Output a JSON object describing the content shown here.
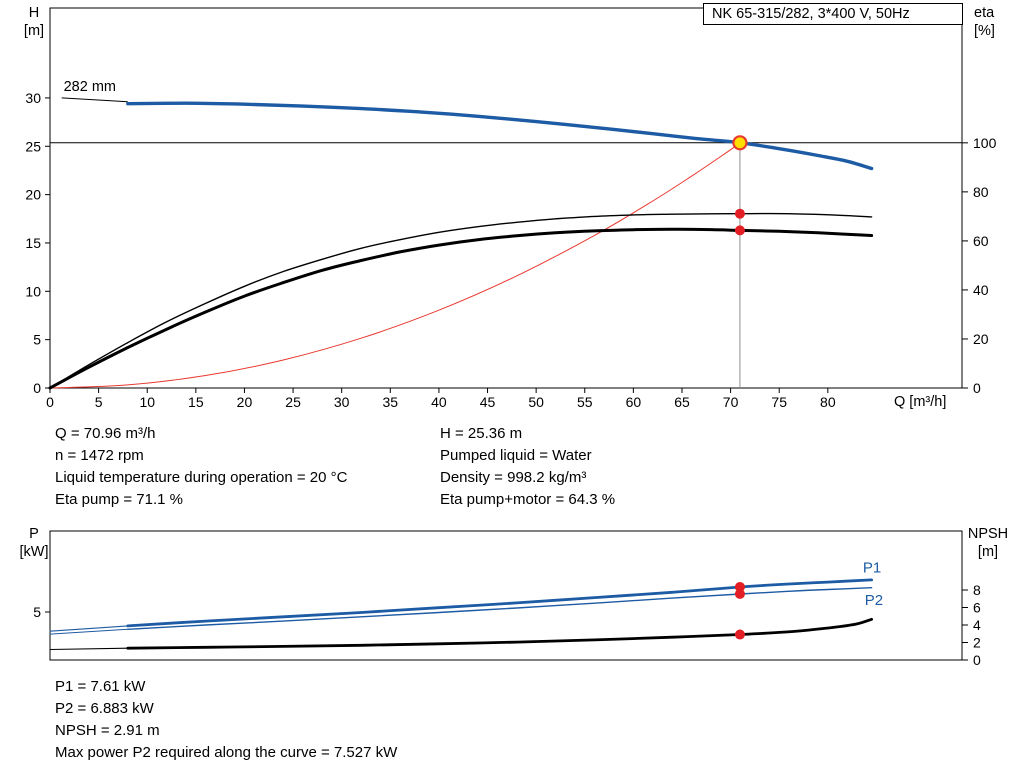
{
  "info_top": {
    "left": [
      "Q = 70.96 m³/h",
      "n = 1472 rpm",
      "Liquid temperature during operation = 20 °C",
      "Eta pump = 71.1 %"
    ],
    "right": [
      "H = 25.36 m",
      "Pumped liquid = Water",
      "Density = 998.2 kg/m³",
      "Eta pump+motor = 64.3 %"
    ]
  },
  "info_bottom": [
    "P1 = 7.61 kW",
    "P2 = 6.883 kW",
    "NPSH = 2.91 m",
    "Max power P2 required along the curve = 7.527 kW"
  ],
  "colors": {
    "curve_blue": "#1d5ba4",
    "curve_black": "#000000",
    "system_red": "#e8392f",
    "dot_red": "#e31e24",
    "duty_yellow": "#ffdf00",
    "crosshair_gray": "#8f8f8f"
  },
  "chart_data": [
    {
      "type": "line",
      "name": "qh-eta-chart",
      "title": "NK 65-315/282, 3*400 V, 50Hz",
      "x_axis": {
        "label": "Q [m³/h]",
        "min": 0,
        "max": 93.8,
        "ticks": [
          0,
          5,
          10,
          15,
          20,
          25,
          30,
          35,
          40,
          45,
          50,
          55,
          60,
          65,
          70,
          75,
          80
        ]
      },
      "y_left": {
        "label": "H",
        "unit": "[m]",
        "min": 0,
        "max": 39.3,
        "ticks": [
          0,
          5,
          10,
          15,
          20,
          25,
          30
        ]
      },
      "y_right": {
        "label": "eta",
        "unit": "[%]",
        "min": 0,
        "max": 155,
        "ticks": [
          0,
          20,
          40,
          60,
          80,
          100
        ]
      },
      "crosshair": {
        "q": 70.96,
        "h": 25.36
      },
      "series": [
        {
          "name": "system-curve",
          "axis": "left",
          "color": "#e8392f",
          "width": 1,
          "points": [
            [
              0,
              0
            ],
            [
              8,
              0.32
            ],
            [
              16,
              1.29
            ],
            [
              24,
              2.9
            ],
            [
              32,
              5.15
            ],
            [
              40,
              8.05
            ],
            [
              48,
              11.59
            ],
            [
              56,
              15.78
            ],
            [
              62,
              19.34
            ],
            [
              66,
              21.92
            ],
            [
              69,
              23.95
            ],
            [
              71,
              25.36
            ]
          ]
        },
        {
          "name": "eta-pump-curve",
          "axis": "right",
          "color": "#000000",
          "width": 1.4,
          "points": [
            [
              0,
              0
            ],
            [
              4,
              9.5
            ],
            [
              8,
              18.5
            ],
            [
              12,
              27
            ],
            [
              16,
              34.5
            ],
            [
              20,
              41.5
            ],
            [
              24,
              47.5
            ],
            [
              28,
              52.5
            ],
            [
              32,
              57
            ],
            [
              36,
              60.5
            ],
            [
              40,
              63.5
            ],
            [
              44,
              65.8
            ],
            [
              48,
              67.6
            ],
            [
              52,
              69
            ],
            [
              56,
              70
            ],
            [
              60,
              70.6
            ],
            [
              64,
              70.9
            ],
            [
              68,
              71.05
            ],
            [
              71,
              71.1
            ],
            [
              74,
              71.15
            ],
            [
              78,
              70.9
            ],
            [
              81,
              70.5
            ],
            [
              84.5,
              69.8
            ]
          ]
        },
        {
          "name": "eta-pump-motor-curve",
          "axis": "right",
          "color": "#000000",
          "width": 3,
          "points": [
            [
              0,
              0
            ],
            [
              4,
              8.5
            ],
            [
              8,
              16.5
            ],
            [
              12,
              24
            ],
            [
              16,
              31
            ],
            [
              20,
              37.5
            ],
            [
              24,
              43
            ],
            [
              28,
              48
            ],
            [
              32,
              52
            ],
            [
              36,
              55.5
            ],
            [
              40,
              58.3
            ],
            [
              44,
              60.5
            ],
            [
              48,
              62.1
            ],
            [
              52,
              63.3
            ],
            [
              56,
              64.1
            ],
            [
              60,
              64.55
            ],
            [
              64,
              64.75
            ],
            [
              68,
              64.6
            ],
            [
              71,
              64.3
            ],
            [
              75,
              63.9
            ],
            [
              79,
              63.3
            ],
            [
              84.5,
              62.2
            ]
          ]
        },
        {
          "name": "pump-head-curve-282mm",
          "axis": "left",
          "color": "#1d5ba4",
          "width": 3.4,
          "points": [
            [
              8,
              29.4
            ],
            [
              14,
              29.45
            ],
            [
              20,
              29.35
            ],
            [
              26,
              29.15
            ],
            [
              32,
              28.9
            ],
            [
              38,
              28.55
            ],
            [
              44,
              28.1
            ],
            [
              50,
              27.55
            ],
            [
              56,
              26.95
            ],
            [
              62,
              26.3
            ],
            [
              66,
              25.85
            ],
            [
              71,
              25.36
            ],
            [
              75,
              24.75
            ],
            [
              79,
              24.05
            ],
            [
              82,
              23.45
            ],
            [
              84.5,
              22.7
            ]
          ]
        }
      ],
      "annotations": [
        {
          "type": "line",
          "name": "impeller-leader-line",
          "axis": "left",
          "q1": 1.2,
          "v1": 30.0,
          "q2": 8,
          "v2": 29.6,
          "color": "#000000",
          "w": 1
        },
        {
          "type": "text",
          "name": "impeller-diameter-label",
          "text": "282 mm",
          "axis": "left",
          "q": 1.4,
          "v": 30.7,
          "color": "#000000",
          "size": 14.5,
          "anchor": "start"
        }
      ],
      "markers": [
        {
          "name": "eta-pump-dot",
          "q": 70.96,
          "value": 71.1,
          "axis": "right",
          "r": 5,
          "fill": "#e31e24"
        },
        {
          "name": "eta-pump-motor-dot",
          "q": 70.96,
          "value": 64.3,
          "axis": "right",
          "r": 5,
          "fill": "#e31e24"
        },
        {
          "name": "duty-point",
          "q": 70.96,
          "value": 25.36,
          "axis": "left",
          "r": 6.5,
          "fill": "#ffdf00",
          "stroke": "#e8392f",
          "sw": 2.2
        }
      ]
    },
    {
      "type": "line",
      "name": "power-npsh-chart",
      "x_axis": {
        "label": "",
        "min": 0,
        "max": 93.8,
        "ticks": []
      },
      "y_left": {
        "label": "P",
        "unit": "[kW]",
        "min": 0,
        "max": 13.44,
        "ticks": [
          5
        ]
      },
      "y_right": {
        "label": "NPSH",
        "unit": "[m]",
        "min": 0,
        "max": 14.74,
        "ticks": [
          0,
          2,
          4,
          6,
          8
        ]
      },
      "series": [
        {
          "name": "p1-lead-line",
          "axis": "left",
          "color": "#1d5ba4",
          "width": 1.1,
          "points": [
            [
              0,
              3.0
            ],
            [
              8,
              3.55
            ]
          ]
        },
        {
          "name": "p1-curve",
          "axis": "left",
          "color": "#1d5ba4",
          "width": 2.8,
          "points": [
            [
              8,
              3.55
            ],
            [
              16,
              4.05
            ],
            [
              24,
              4.5
            ],
            [
              32,
              4.95
            ],
            [
              40,
              5.45
            ],
            [
              48,
              5.95
            ],
            [
              56,
              6.5
            ],
            [
              64,
              7.05
            ],
            [
              71,
              7.61
            ],
            [
              76,
              7.92
            ],
            [
              80,
              8.12
            ],
            [
              84.5,
              8.35
            ]
          ]
        },
        {
          "name": "p2-lead-line",
          "axis": "left",
          "color": "#1d5ba4",
          "width": 1,
          "points": [
            [
              0,
              2.7
            ],
            [
              8,
              3.2
            ]
          ]
        },
        {
          "name": "p2-curve",
          "axis": "left",
          "color": "#1d5ba4",
          "width": 1.4,
          "points": [
            [
              8,
              3.2
            ],
            [
              16,
              3.65
            ],
            [
              24,
              4.05
            ],
            [
              32,
              4.5
            ],
            [
              40,
              4.95
            ],
            [
              48,
              5.42
            ],
            [
              56,
              5.92
            ],
            [
              64,
              6.45
            ],
            [
              71,
              6.88
            ],
            [
              76,
              7.16
            ],
            [
              80,
              7.35
            ],
            [
              84.5,
              7.53
            ]
          ]
        },
        {
          "name": "npsh-lead-line",
          "axis": "right",
          "color": "#000000",
          "width": 1.1,
          "points": [
            [
              0,
              1.2
            ],
            [
              8,
              1.35
            ]
          ]
        },
        {
          "name": "npsh-curve",
          "axis": "right",
          "color": "#000000",
          "width": 2.8,
          "points": [
            [
              8,
              1.35
            ],
            [
              16,
              1.45
            ],
            [
              24,
              1.55
            ],
            [
              32,
              1.68
            ],
            [
              40,
              1.85
            ],
            [
              48,
              2.05
            ],
            [
              56,
              2.3
            ],
            [
              64,
              2.6
            ],
            [
              71,
              2.91
            ],
            [
              75,
              3.15
            ],
            [
              78,
              3.42
            ],
            [
              81,
              3.78
            ],
            [
              83,
              4.12
            ],
            [
              84.5,
              4.65
            ]
          ]
        }
      ],
      "annotations": [
        {
          "type": "text",
          "name": "p1-series-label",
          "text": "P1",
          "axis": "left",
          "q": 83.6,
          "v": 9.1,
          "color": "#1d5ba4",
          "size": 15,
          "anchor": "start"
        },
        {
          "type": "text",
          "name": "p2-series-label",
          "text": "P2",
          "axis": "left",
          "q": 83.8,
          "v": 5.75,
          "color": "#1d5ba4",
          "size": 15,
          "anchor": "start"
        }
      ],
      "markers": [
        {
          "name": "p1-dot",
          "q": 70.96,
          "value": 7.61,
          "axis": "left",
          "r": 5,
          "fill": "#e31e24"
        },
        {
          "name": "p2-dot",
          "q": 70.96,
          "value": 6.883,
          "axis": "left",
          "r": 5,
          "fill": "#e31e24"
        },
        {
          "name": "npsh-dot",
          "q": 70.96,
          "value": 2.91,
          "axis": "right",
          "r": 5,
          "fill": "#e31e24"
        }
      ]
    }
  ]
}
